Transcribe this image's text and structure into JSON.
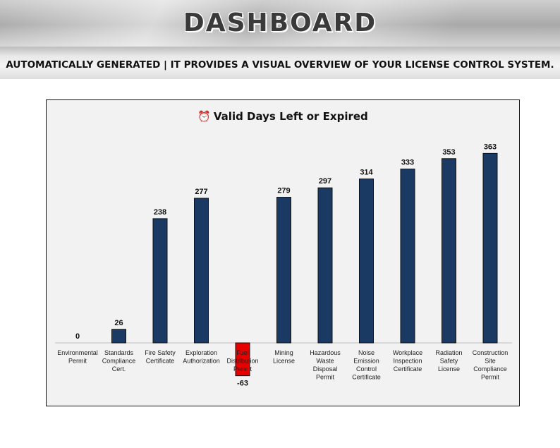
{
  "page": {
    "title": "DASHBOARD",
    "subtitle": "AUTOMATICALLY GENERATED | IT PROVIDES A VISUAL OVERVIEW OF YOUR LICENSE CONTROL SYSTEM."
  },
  "colors": {
    "positive_bar": "#1b3a63",
    "negative_bar": "#e80000",
    "axis": "#bfbfbf"
  },
  "chart_data": {
    "type": "bar",
    "title": "Valid Days Left or Expired",
    "title_icon": "alarm-clock-icon",
    "categories": [
      "Environmental Permit",
      "Standards Compliance Cert.",
      "Fire Safety Certificate",
      "Exploration Authorization",
      "Fuel Distribution Permit",
      "Mining License",
      "Hazardous Waste Disposal Permit",
      "Noise Emission Control Certificate",
      "Workplace Inspection Certificate",
      "Radiation Safety License",
      "Construction Site Compliance Permit"
    ],
    "values": [
      0,
      26,
      238,
      277,
      -63,
      279,
      297,
      314,
      333,
      353,
      363
    ],
    "data_labels": true,
    "grid": false,
    "legend": "none",
    "ylim": [
      -63,
      363
    ]
  }
}
